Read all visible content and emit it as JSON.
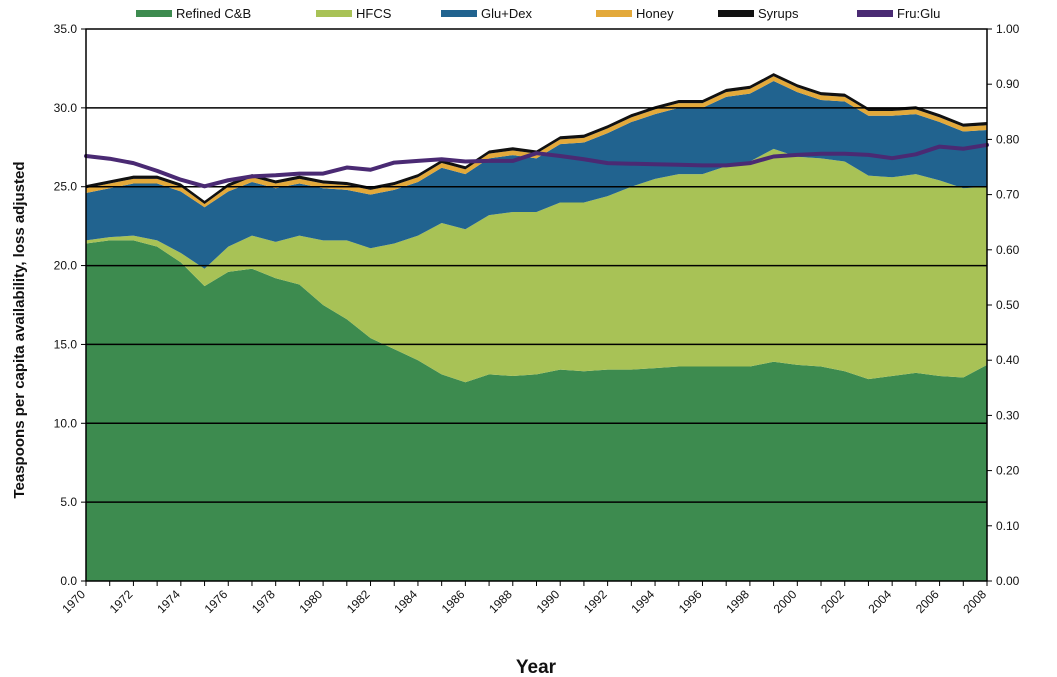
{
  "chart_data": {
    "type": "area",
    "title": "",
    "xlabel": "Year",
    "ylabel": "Teaspoons per capita availability, loss adjusted",
    "x": [
      1970,
      1971,
      1972,
      1973,
      1974,
      1975,
      1976,
      1977,
      1978,
      1979,
      1980,
      1981,
      1982,
      1983,
      1984,
      1985,
      1986,
      1987,
      1988,
      1989,
      1990,
      1991,
      1992,
      1993,
      1994,
      1995,
      1996,
      1997,
      1998,
      1999,
      2000,
      2001,
      2002,
      2003,
      2004,
      2005,
      2006,
      2007,
      2008
    ],
    "x_tick_labels": [
      "1970",
      "1972",
      "1974",
      "1976",
      "1978",
      "1980",
      "1982",
      "1984",
      "1986",
      "1988",
      "1990",
      "1992",
      "1994",
      "1996",
      "1998",
      "2000",
      "2002",
      "2004",
      "2006",
      "2008"
    ],
    "ylim": [
      0,
      35
    ],
    "y_tick_labels": [
      "0.0",
      "5.0",
      "10.0",
      "15.0",
      "20.0",
      "25.0",
      "30.0",
      "35.0"
    ],
    "y2lim": [
      0,
      1
    ],
    "y2_tick_labels": [
      "0.00",
      "0.10",
      "0.20",
      "0.30",
      "0.40",
      "0.50",
      "0.60",
      "0.70",
      "0.80",
      "0.90",
      "1.00"
    ],
    "grid": "horizontal lines at 5, 15, 20, 25, 30",
    "legend_position": "top",
    "stacked": true,
    "series": [
      {
        "name": "Refined C&B",
        "color": "#3d8b4f",
        "values": [
          21.4,
          21.6,
          21.6,
          21.2,
          20.2,
          18.7,
          19.6,
          19.8,
          19.2,
          18.8,
          17.5,
          16.6,
          15.4,
          14.7,
          14.0,
          13.1,
          12.6,
          13.1,
          13.0,
          13.1,
          13.4,
          13.3,
          13.4,
          13.4,
          13.5,
          13.6,
          13.6,
          13.6,
          13.6,
          13.9,
          13.7,
          13.6,
          13.3,
          12.8,
          13.0,
          13.2,
          13.0,
          12.9,
          13.7
        ]
      },
      {
        "name": "HFCS",
        "color": "#a8c256",
        "values": [
          0.2,
          0.2,
          0.3,
          0.4,
          0.6,
          1.1,
          1.6,
          2.1,
          2.3,
          3.1,
          4.1,
          5.0,
          5.7,
          6.7,
          7.9,
          9.6,
          9.7,
          10.1,
          10.4,
          10.3,
          10.6,
          10.7,
          11.0,
          11.6,
          12.0,
          12.2,
          12.2,
          12.7,
          13.0,
          13.5,
          13.2,
          13.2,
          13.3,
          12.9,
          12.6,
          12.6,
          12.4,
          12.0,
          11.3
        ]
      },
      {
        "name": "Glu+Dex",
        "color": "#21638f",
        "values": [
          3.0,
          3.1,
          3.3,
          3.6,
          3.9,
          3.9,
          3.5,
          3.4,
          3.4,
          3.3,
          3.3,
          3.2,
          3.4,
          3.4,
          3.4,
          3.5,
          3.5,
          3.6,
          3.6,
          3.4,
          3.7,
          3.8,
          4.0,
          4.1,
          4.1,
          4.2,
          4.2,
          4.4,
          4.3,
          4.3,
          4.1,
          3.7,
          3.8,
          3.8,
          3.9,
          3.8,
          3.7,
          3.6,
          3.6
        ]
      },
      {
        "name": "Honey",
        "color": "#e3a93a",
        "values": [
          0.3,
          0.3,
          0.3,
          0.3,
          0.3,
          0.2,
          0.3,
          0.3,
          0.3,
          0.3,
          0.3,
          0.3,
          0.3,
          0.3,
          0.3,
          0.3,
          0.3,
          0.3,
          0.3,
          0.3,
          0.3,
          0.3,
          0.3,
          0.3,
          0.3,
          0.3,
          0.3,
          0.3,
          0.3,
          0.3,
          0.3,
          0.3,
          0.3,
          0.3,
          0.3,
          0.3,
          0.3,
          0.3,
          0.3
        ]
      },
      {
        "name": "Syrups",
        "color": "#111111",
        "values": [
          0.2,
          0.2,
          0.2,
          0.2,
          0.2,
          0.2,
          0.2,
          0.2,
          0.2,
          0.2,
          0.2,
          0.2,
          0.2,
          0.2,
          0.2,
          0.2,
          0.2,
          0.2,
          0.2,
          0.2,
          0.2,
          0.2,
          0.2,
          0.2,
          0.2,
          0.2,
          0.2,
          0.2,
          0.2,
          0.2,
          0.2,
          0.2,
          0.2,
          0.2,
          0.2,
          0.2,
          0.2,
          0.2,
          0.2
        ]
      },
      {
        "name": "Fru:Glu",
        "color": "#4a2a73",
        "axis": "right",
        "kind": "line",
        "values": [
          0.77,
          0.765,
          0.757,
          0.743,
          0.727,
          0.715,
          0.726,
          0.733,
          0.735,
          0.738,
          0.738,
          0.749,
          0.745,
          0.758,
          0.761,
          0.764,
          0.76,
          0.761,
          0.761,
          0.775,
          0.77,
          0.764,
          0.757,
          0.756,
          0.755,
          0.754,
          0.753,
          0.753,
          0.757,
          0.769,
          0.772,
          0.774,
          0.774,
          0.772,
          0.766,
          0.773,
          0.787,
          0.783,
          0.79
        ]
      }
    ]
  }
}
